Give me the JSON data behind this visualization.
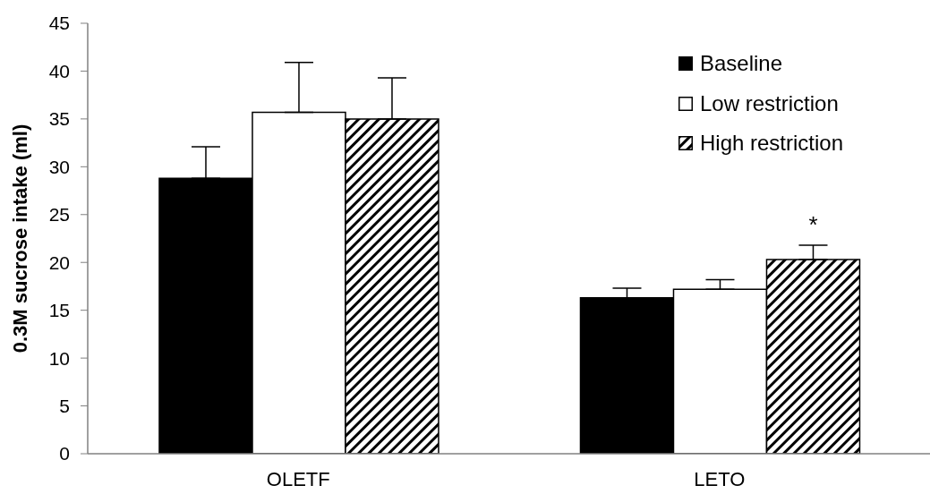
{
  "chart_data": {
    "type": "bar",
    "ylabel": "0.3M sucrose intake (ml)",
    "categories": [
      "OLETF",
      "LETO"
    ],
    "series": [
      {
        "name": "Baseline",
        "color": "#000000",
        "values": [
          28.8,
          16.3
        ],
        "errors": [
          [
            28.8,
            32.1
          ],
          [
            16.3,
            17.3
          ]
        ]
      },
      {
        "name": "Low restriction",
        "color": "#ffffff",
        "values": [
          35.7,
          17.2
        ],
        "errors": [
          [
            35.7,
            40.9
          ],
          [
            17.2,
            18.2
          ]
        ]
      },
      {
        "name": "High restriction",
        "color": "#000000",
        "values": [
          35.0,
          20.3
        ],
        "errors": [
          [
            35.0,
            39.3
          ],
          [
            20.3,
            21.8
          ]
        ],
        "value_labels": [
          null,
          "*"
        ]
      }
    ],
    "ylim": [
      0,
      45
    ],
    "yticks": [
      0,
      5,
      10,
      15,
      20,
      25,
      30,
      35,
      40,
      45
    ],
    "legend": "top right"
  }
}
